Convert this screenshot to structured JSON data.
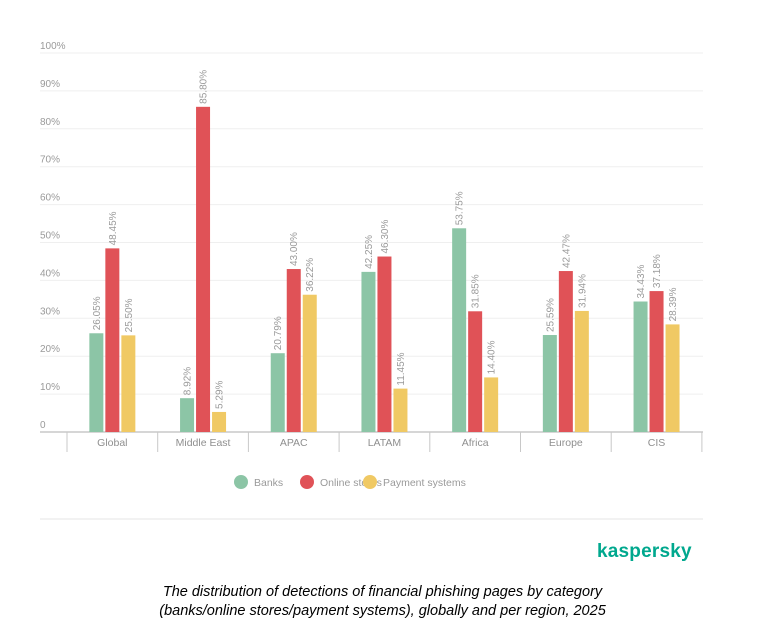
{
  "chart_data": {
    "type": "bar",
    "categories": [
      "Global",
      "Middle East",
      "APAC",
      "LATAM",
      "Africa",
      "Europe",
      "CIS"
    ],
    "series": [
      {
        "name": "Banks",
        "color": "#8cc5a6",
        "values": [
          26.05,
          8.92,
          20.79,
          42.25,
          53.75,
          25.59,
          34.43
        ]
      },
      {
        "name": "Online stores",
        "color": "#e05257",
        "values": [
          48.45,
          85.8,
          43.0,
          46.3,
          31.85,
          42.47,
          37.18
        ]
      },
      {
        "name": "Payment systems",
        "color": "#f0c964",
        "values": [
          25.5,
          5.29,
          36.22,
          11.45,
          14.4,
          31.94,
          28.39
        ]
      }
    ],
    "yticks": [
      "0",
      "10%",
      "20%",
      "30%",
      "40%",
      "50%",
      "60%",
      "70%",
      "80%",
      "90%",
      "100%"
    ],
    "ylim": [
      0,
      100
    ],
    "grid": true,
    "legend": "bottom",
    "data_labels": true
  },
  "logo": "kaspersky",
  "caption": {
    "line1": "The distribution of detections of financial phishing pages by category",
    "line2": "(banks/online stores/payment systems), globally and per region, 2025"
  }
}
